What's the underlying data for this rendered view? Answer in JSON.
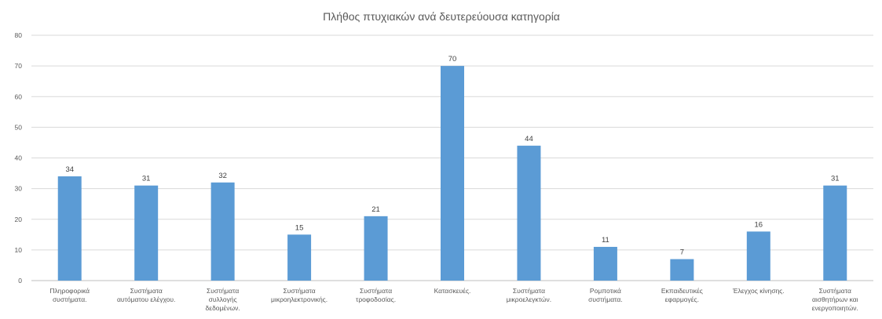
{
  "chart_data": {
    "type": "bar",
    "title": "Πλήθος πτυχιακών ανά δευτερεύουσα κατηγορία",
    "xlabel": "",
    "ylabel": "",
    "ylim": [
      0,
      80
    ],
    "yticks": [
      0,
      10,
      20,
      30,
      40,
      50,
      60,
      70,
      80
    ],
    "grid": true,
    "legend": "none",
    "bar_color": "#5b9bd5",
    "categories": [
      [
        "Πληροφορικά",
        "συστήματα."
      ],
      [
        "Συστήματα",
        "αυτόματου ελέγχου."
      ],
      [
        "Συστήματα",
        "συλλογής",
        "δεδομένων."
      ],
      [
        "Συστήματα",
        "μικροηλεκτρονικής."
      ],
      [
        "Συστήματα",
        "τροφοδοσίας."
      ],
      [
        "Κατασκευές."
      ],
      [
        "Συστήματα",
        "μικροελεγκτών."
      ],
      [
        "Ρομποτικά",
        "συστήματα."
      ],
      [
        "Εκπαιδευτικές",
        "εφαρμογές."
      ],
      [
        "Έλεγχος κίνησης."
      ],
      [
        "Συστήματα",
        "αισθητήρων και",
        "ενεργοποιητών."
      ]
    ],
    "values": [
      34,
      31,
      32,
      15,
      21,
      70,
      44,
      11,
      7,
      16,
      31
    ]
  }
}
